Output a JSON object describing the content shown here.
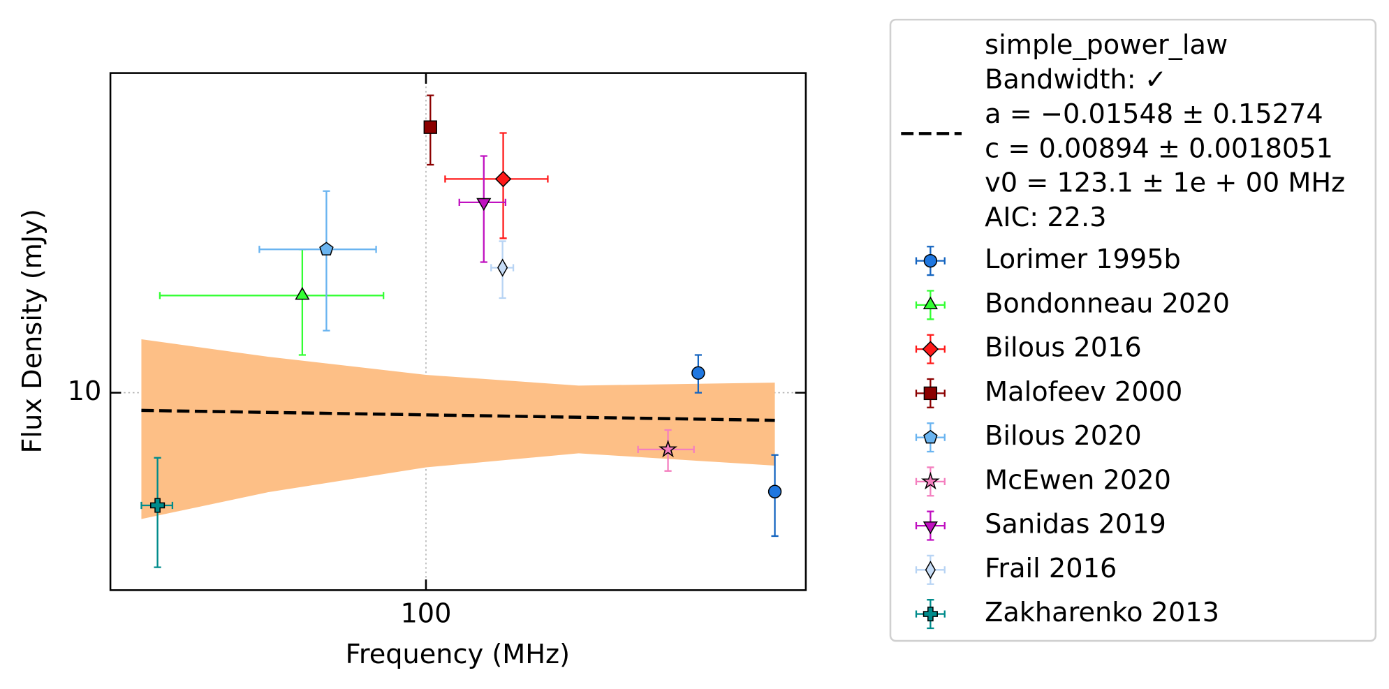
{
  "chart_data": {
    "type": "scatter",
    "xlabel": "Frequency (MHz)",
    "ylabel": "Flux Density (mJy)",
    "xscale": "log",
    "yscale": "log",
    "xlim": [
      19.6,
      711
    ],
    "ylim": [
      3.85,
      46.9
    ],
    "xticks": [
      100
    ],
    "yticks": [
      10
    ],
    "grid": true,
    "legend": "outside right",
    "fit": {
      "name_lines": [
        "simple_power_law",
        "Bandwidth: ✓",
        "a = −0.01548 ± 0.15274",
        "c = 0.00894 ± 0.0018051",
        "v0 = 123.1 ± 1e + 00 MHz",
        "AIC: 22.3"
      ],
      "color": "#000000",
      "x": [
        23,
        606
      ],
      "values": [
        9.18,
        8.75
      ],
      "band_color": "#fdbf86",
      "band_x": [
        23,
        44.2,
        100,
        220,
        606
      ],
      "band_upper": [
        12.95,
        11.9,
        10.9,
        10.35,
        10.5
      ],
      "band_lower": [
        5.43,
        6.18,
        6.97,
        7.46,
        7.03
      ]
    },
    "series": [
      {
        "name": "Lorimer 1995b",
        "color": "#1565c0",
        "face": "#1f77e0",
        "marker": "circle",
        "x": [
          408,
          606
        ],
        "values": [
          11.0,
          6.2
        ],
        "yerr": [
          1.0,
          1.2
        ]
      },
      {
        "name": "Bondonneau 2020",
        "color": "#33ff33",
        "face": "#33ff33",
        "marker": "triangle-up",
        "x": [
          52.8
        ],
        "values": [
          16.0
        ],
        "xerr": [
          27.5
        ],
        "yerr": [
          4
        ]
      },
      {
        "name": "Bilous 2016",
        "color": "#ff1a1a",
        "face": "#ff1a1a",
        "marker": "diamond",
        "x": [
          149
        ],
        "values": [
          28.1
        ],
        "xerr": [
          38.6
        ],
        "yerr": [
          7
        ]
      },
      {
        "name": "Malofeev 2000",
        "color": "#8b0000",
        "face": "#8b0000",
        "marker": "square",
        "x": [
          102.3
        ],
        "values": [
          36.1
        ],
        "yerr": [
          6
        ]
      },
      {
        "name": "Bilous 2020",
        "color": "#6ab4f0",
        "face": "#6ab4f0",
        "marker": "pentagon",
        "x": [
          59.8
        ],
        "values": [
          20.0
        ],
        "xerr": [
          17.5
        ],
        "yerr": [
          6.5
        ]
      },
      {
        "name": "McEwen 2020",
        "color": "#f47fbf",
        "face": "#f47fbf",
        "marker": "star",
        "x": [
          349
        ],
        "values": [
          7.6
        ],
        "xerr": [
          50
        ],
        "yerr": [
          0.75
        ]
      },
      {
        "name": "Sanidas 2019",
        "color": "#c010c0",
        "face": "#c010c0",
        "marker": "triangle-down",
        "x": [
          134.8
        ],
        "values": [
          25.1
        ],
        "xerr": [
          16
        ],
        "yerr": [
          6.3
        ]
      },
      {
        "name": "Frail 2016",
        "color": "#b8d4f4",
        "face": "#c6dcf6",
        "marker": "thin-diamond",
        "x": [
          148.5
        ],
        "values": [
          18.3
        ],
        "xerr": [
          8.5
        ],
        "yerr": [
          2.5
        ]
      },
      {
        "name": "Zakharenko 2013",
        "color": "#008b8b",
        "face": "#008b8b",
        "marker": "plus",
        "x": [
          25.0
        ],
        "values": [
          5.8
        ],
        "xerr": [
          2
        ],
        "yerr": [
          1.5
        ]
      }
    ]
  }
}
